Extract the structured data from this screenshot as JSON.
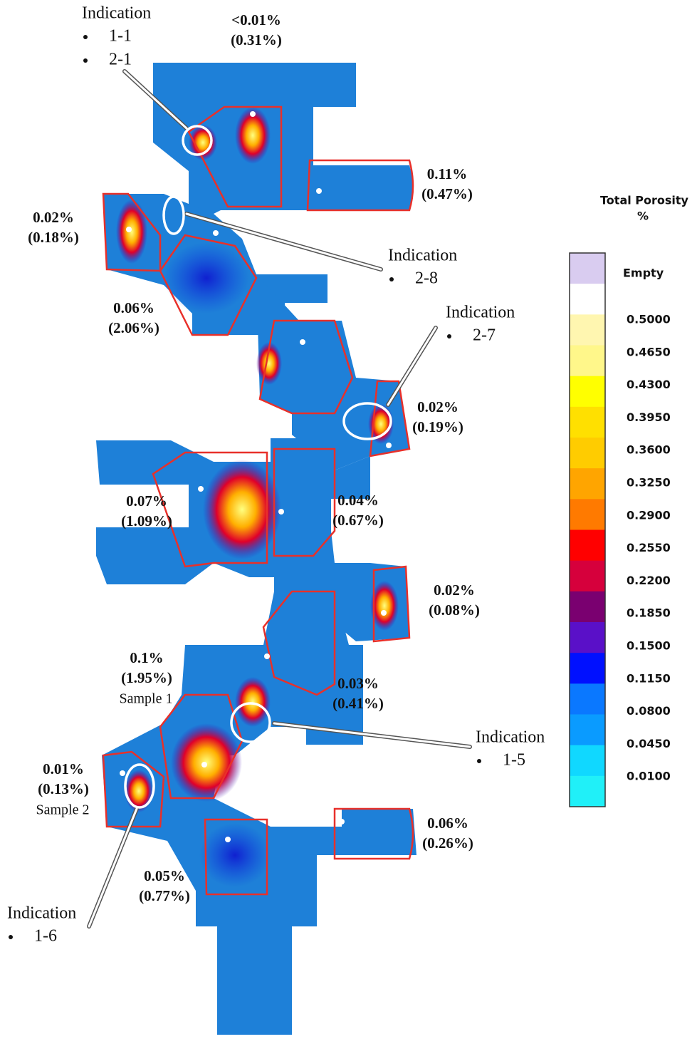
{
  "regions": [
    {
      "value": "<0.01%",
      "total": "(0.31%)"
    },
    {
      "value": "0.11%",
      "total": "(0.47%)"
    },
    {
      "value": "0.02%",
      "total": "(0.18%)"
    },
    {
      "value": "0.06%",
      "total": "(2.06%)"
    },
    {
      "value": "0.02%",
      "total": "(0.19%)"
    },
    {
      "value": "0.07%",
      "total": "(1.09%)"
    },
    {
      "value": "0.04%",
      "total": "(0.67%)"
    },
    {
      "value": "0.02%",
      "total": "(0.08%)"
    },
    {
      "value": "0.1%",
      "total": "(1.95%)",
      "sample": "Sample 1"
    },
    {
      "value": "0.03%",
      "total": "(0.41%)"
    },
    {
      "value": "0.01%",
      "total": "(0.13%)",
      "sample": "Sample 2"
    },
    {
      "value": "0.06%",
      "total": "(0.26%)"
    },
    {
      "value": "0.05%",
      "total": "(0.77%)"
    }
  ],
  "indications": [
    {
      "title": "Indication",
      "items": [
        "1-1",
        "2-1"
      ]
    },
    {
      "title": "Indication",
      "items": [
        "2-8"
      ]
    },
    {
      "title": "Indication",
      "items": [
        "2-7"
      ]
    },
    {
      "title": "Indication",
      "items": [
        "1-5"
      ]
    },
    {
      "title": "Indication",
      "items": [
        "1-6"
      ]
    }
  ],
  "legend": {
    "title": "Total Porosity",
    "unit": "%",
    "labels": [
      "Empty",
      "0.5000",
      "0.4650",
      "0.4300",
      "0.3950",
      "0.3600",
      "0.3250",
      "0.2900",
      "0.2550",
      "0.2200",
      "0.1850",
      "0.1500",
      "0.1150",
      "0.0800",
      "0.0450",
      "0.0100"
    ],
    "colors": [
      "#d9ccf0",
      "#ffffff",
      "#fff6b0",
      "#fff78a",
      "#ffff00",
      "#ffe000",
      "#ffcc00",
      "#ffa500",
      "#ff7a00",
      "#ff0000",
      "#d6003c",
      "#7a0070",
      "#5a10c8",
      "#0010ff",
      "#0a78ff",
      "#0a9bff",
      "#10d8ff",
      "#20f0f8"
    ]
  }
}
